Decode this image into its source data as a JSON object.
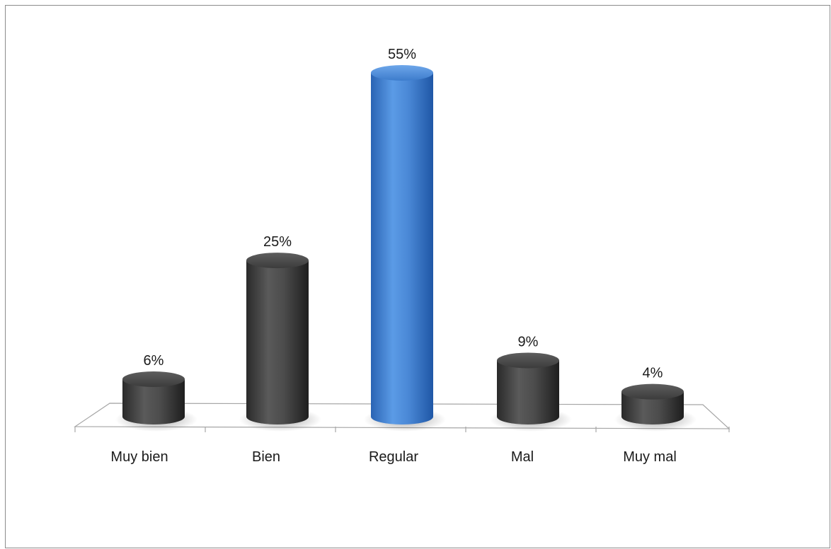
{
  "chart_data": {
    "type": "bar",
    "categories": [
      "Muy bien",
      "Bien",
      "Regular",
      "Mal",
      "Muy mal"
    ],
    "values": [
      6,
      25,
      55,
      9,
      4
    ],
    "data_labels": [
      "6%",
      "25%",
      "55%",
      "9%",
      "4%"
    ],
    "unit": "%",
    "title": "",
    "xlabel": "",
    "ylabel": "",
    "ylim": [
      0,
      55
    ],
    "grid": false,
    "legend": "none",
    "style": "3d-cylinder",
    "colors": {
      "default_bar": "#4a4a4a",
      "highlight_bar": "#3f7fd0",
      "highlight_index": 2,
      "axis": "#a6a6a6"
    }
  }
}
